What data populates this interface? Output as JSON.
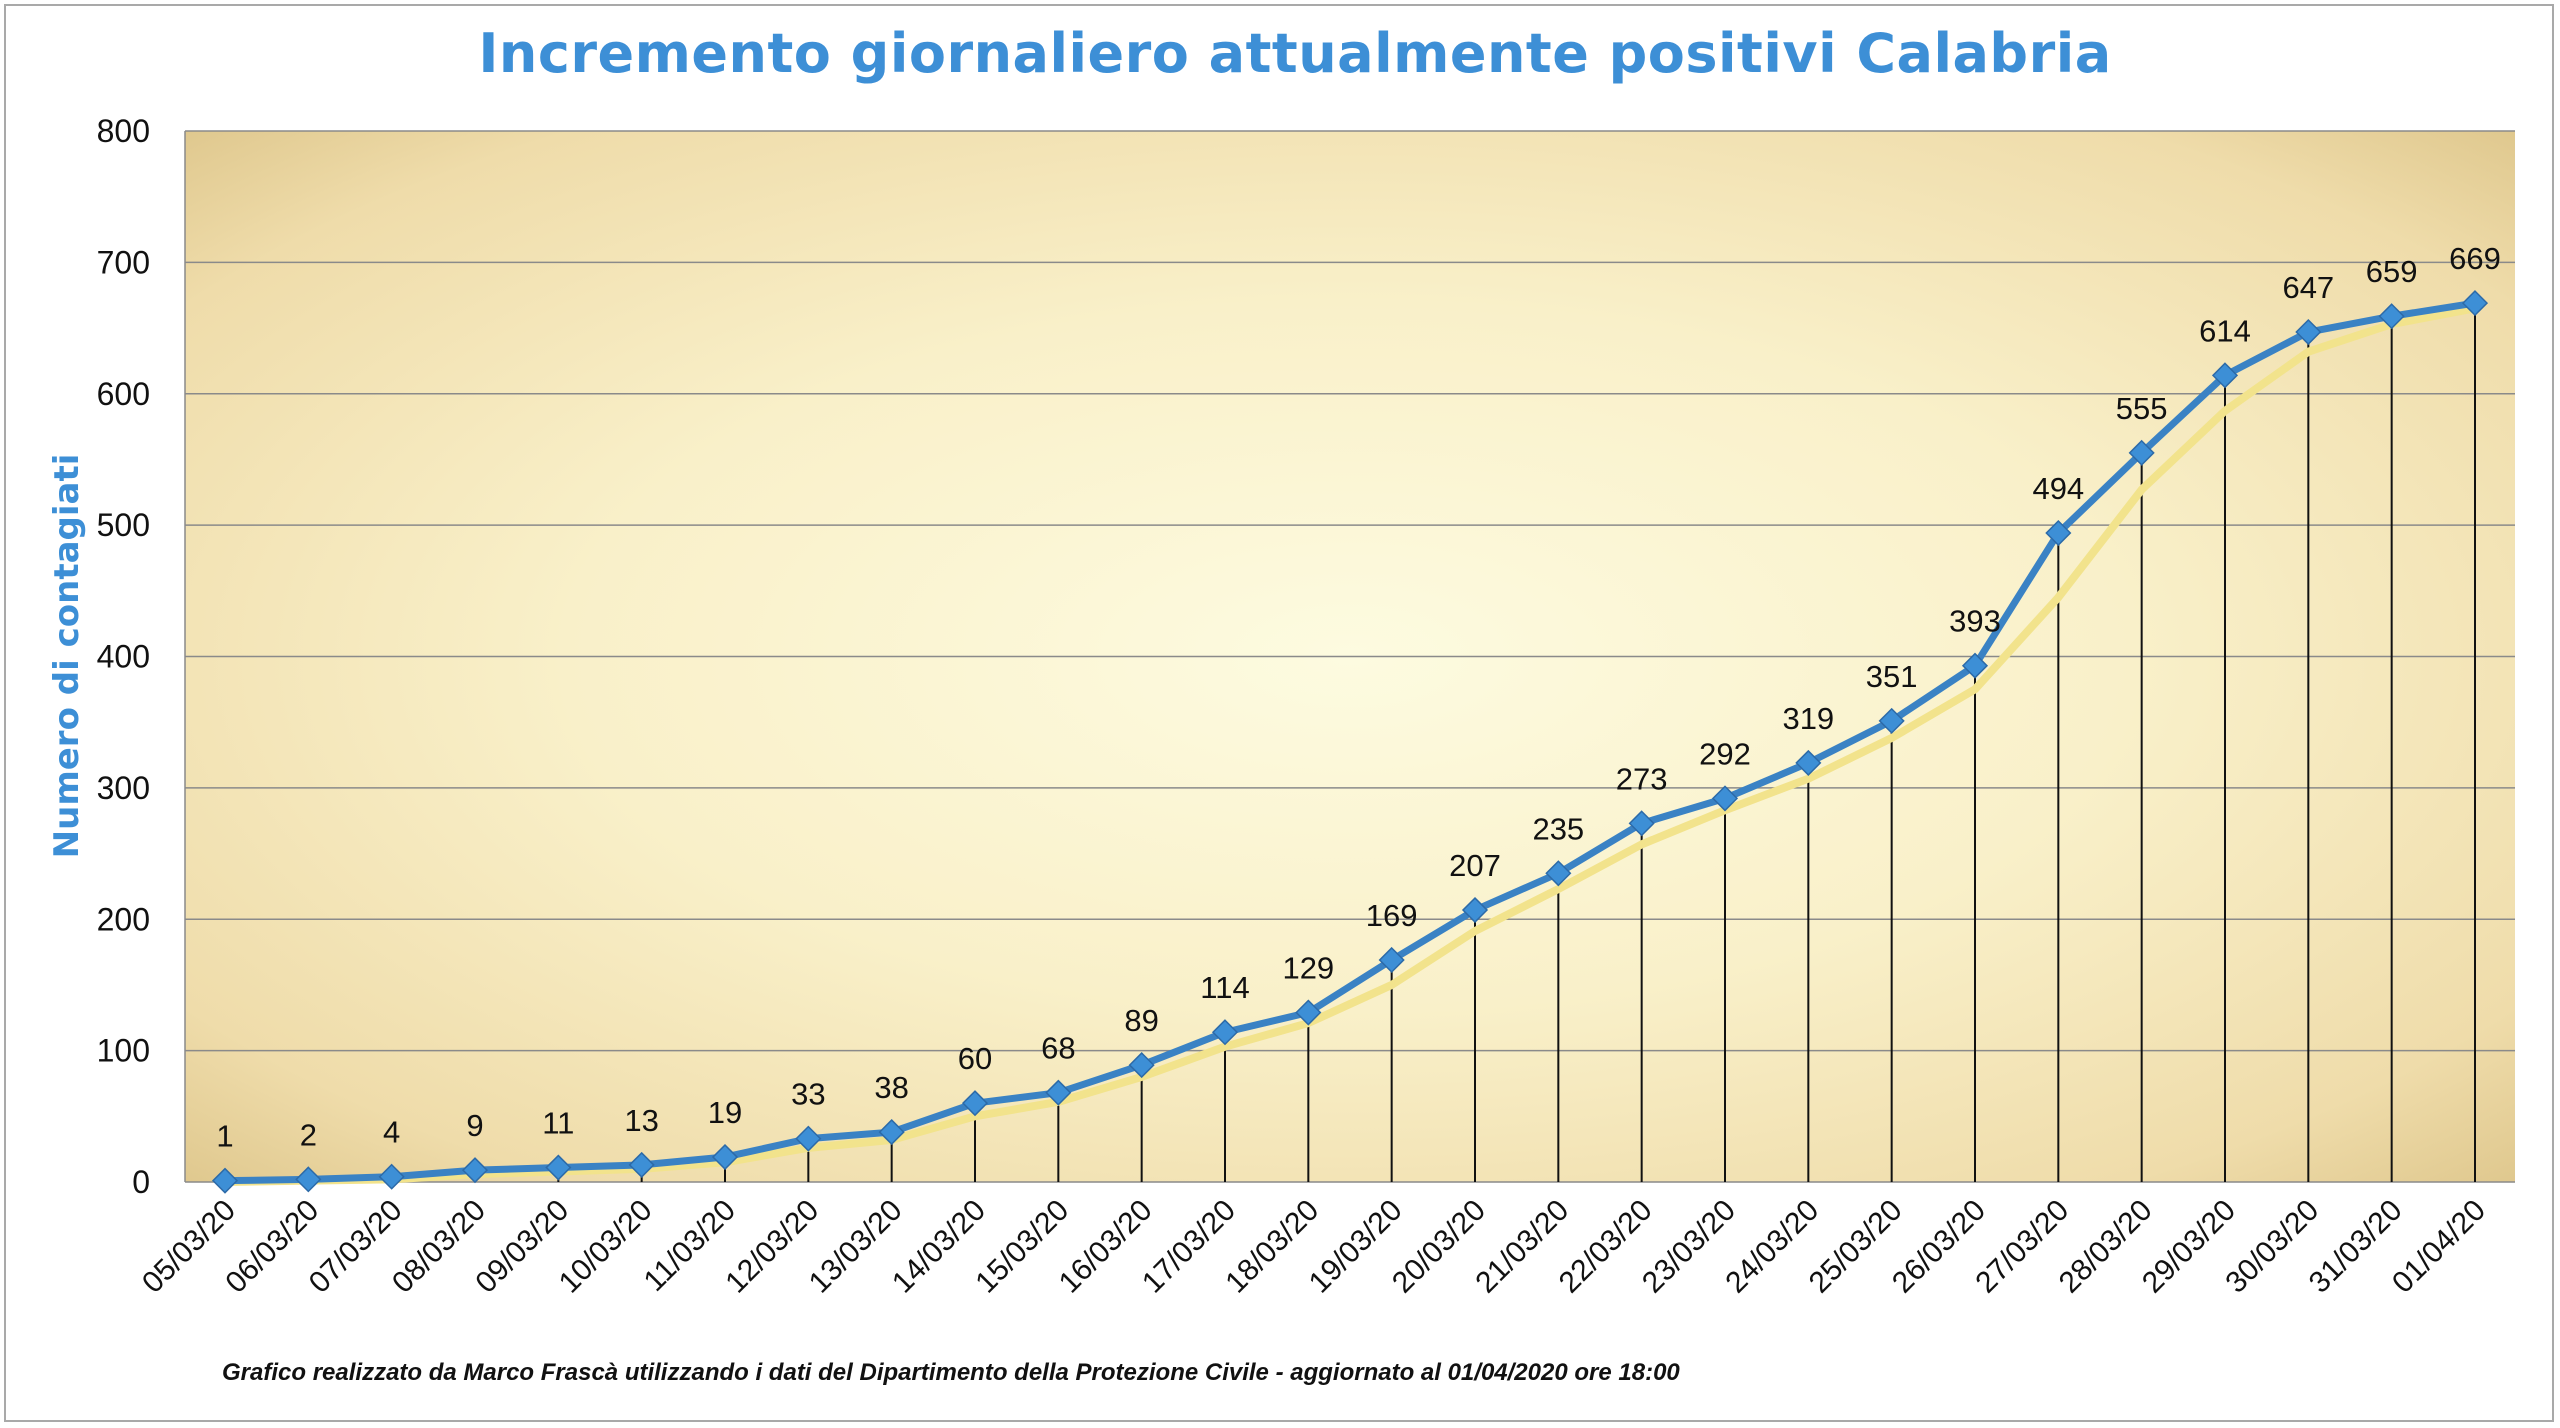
{
  "chart_data": {
    "type": "line",
    "title": "Incremento giornaliero attualmente positivi Calabria",
    "ylabel": "Numero di contagiati",
    "xlabel": "",
    "ylim": [
      0,
      800
    ],
    "yticks": [
      "0",
      "100",
      "200",
      "300",
      "400",
      "500",
      "600",
      "700",
      "800"
    ],
    "grid": true,
    "categories": [
      "05/03/20",
      "06/03/20",
      "07/03/20",
      "08/03/20",
      "09/03/20",
      "10/03/20",
      "11/03/20",
      "12/03/20",
      "13/03/20",
      "14/03/20",
      "15/03/20",
      "16/03/20",
      "17/03/20",
      "18/03/20",
      "19/03/20",
      "20/03/20",
      "21/03/20",
      "22/03/20",
      "23/03/20",
      "24/03/20",
      "25/03/20",
      "26/03/20",
      "27/03/20",
      "28/03/20",
      "29/03/20",
      "30/03/20",
      "31/03/20",
      "01/04/20"
    ],
    "values": [
      1,
      2,
      4,
      9,
      11,
      13,
      19,
      33,
      38,
      60,
      68,
      89,
      114,
      129,
      169,
      207,
      235,
      273,
      292,
      319,
      351,
      393,
      494,
      555,
      614,
      647,
      659,
      669
    ],
    "trend_values": [
      0,
      1,
      2,
      6,
      8,
      10,
      15,
      26,
      32,
      50,
      61,
      80,
      103,
      121,
      150,
      191,
      223,
      257,
      283,
      307,
      338,
      375,
      445,
      527,
      587,
      632,
      653,
      665
    ],
    "colors": {
      "line": "#3a82c4",
      "trend": "#f2e38c",
      "marker": "#3d8fd6",
      "title": "#3d8fd6"
    },
    "footer": "Grafico  realizzato da Marco Frascà  utilizzando i dati del Dipartimento  della Protezione Civile - aggiornato al 01/04/2020  ore 18:00"
  }
}
